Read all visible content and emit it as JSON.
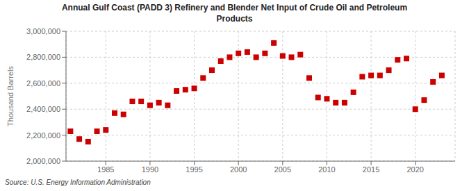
{
  "chart_data": {
    "type": "scatter",
    "title": "Annual Gulf Coast (PADD 3) Refinery and Blender Net Input of Crude Oil and Petroleum\nProducts",
    "ylabel": "Thousand Barrels",
    "source": "Source: U.S. Energy Information Administration",
    "x": [
      1981,
      1982,
      1983,
      1984,
      1985,
      1986,
      1987,
      1988,
      1989,
      1990,
      1991,
      1992,
      1993,
      1994,
      1995,
      1996,
      1997,
      1998,
      1999,
      2000,
      2001,
      2002,
      2003,
      2004,
      2005,
      2006,
      2007,
      2008,
      2009,
      2010,
      2011,
      2012,
      2013,
      2014,
      2015,
      2016,
      2017,
      2018,
      2019,
      2020,
      2021,
      2022,
      2023
    ],
    "values": [
      2230000,
      2170000,
      2150000,
      2230000,
      2240000,
      2370000,
      2360000,
      2460000,
      2460000,
      2430000,
      2450000,
      2430000,
      2540000,
      2550000,
      2560000,
      2640000,
      2700000,
      2770000,
      2800000,
      2830000,
      2840000,
      2800000,
      2830000,
      2910000,
      2810000,
      2800000,
      2820000,
      2640000,
      2490000,
      2480000,
      2450000,
      2450000,
      2530000,
      2650000,
      2660000,
      2660000,
      2700000,
      2780000,
      2790000,
      2400000,
      2470000,
      2610000,
      2660000
    ],
    "color": "#cc0000",
    "marker": "square",
    "grid": true,
    "xlim": [
      1980.5,
      2024.5
    ],
    "xticks": [
      1985,
      1990,
      1995,
      2000,
      2005,
      2010,
      2015,
      2020
    ],
    "ylim": [
      2000000,
      3000000
    ],
    "yticks": [
      {
        "value": 2000000,
        "label": "2,000,000"
      },
      {
        "value": 2200000,
        "label": "2,200,000"
      },
      {
        "value": 2400000,
        "label": "2,400,000"
      },
      {
        "value": 2600000,
        "label": "2,600,000"
      },
      {
        "value": 2800000,
        "label": "2,800,000"
      },
      {
        "value": 3000000,
        "label": "3,000,000"
      }
    ]
  }
}
